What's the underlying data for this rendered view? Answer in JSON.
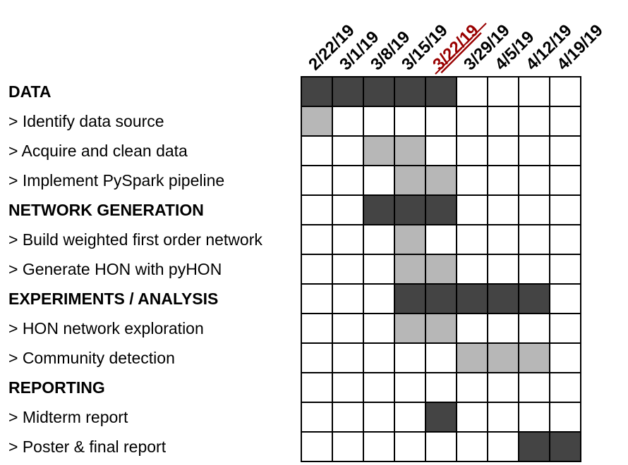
{
  "chart_data": {
    "type": "table",
    "title": "",
    "columns": [
      "2/22/19",
      "3/1/19",
      "3/8/19",
      "3/15/19",
      "3/22/19",
      "3/29/19",
      "4/5/19",
      "4/12/19",
      "4/19/19"
    ],
    "highlighted_column": "3/22/19",
    "rows": [
      {
        "label": "DATA",
        "kind": "section",
        "cells": [
          1,
          1,
          1,
          1,
          1,
          0,
          0,
          0,
          0
        ]
      },
      {
        "label": "> Identify data source",
        "kind": "task",
        "cells": [
          1,
          0,
          0,
          0,
          0,
          0,
          0,
          0,
          0
        ]
      },
      {
        "label": "> Acquire and clean data",
        "kind": "task",
        "cells": [
          0,
          0,
          1,
          1,
          0,
          0,
          0,
          0,
          0
        ]
      },
      {
        "label": "> Implement PySpark pipeline",
        "kind": "task",
        "cells": [
          0,
          0,
          0,
          1,
          1,
          0,
          0,
          0,
          0
        ]
      },
      {
        "label": "NETWORK GENERATION",
        "kind": "section",
        "cells": [
          0,
          0,
          1,
          1,
          1,
          0,
          0,
          0,
          0
        ]
      },
      {
        "label": "> Build weighted first order network",
        "kind": "task",
        "cells": [
          0,
          0,
          0,
          1,
          0,
          0,
          0,
          0,
          0
        ]
      },
      {
        "label": "> Generate HON with pyHON",
        "kind": "task",
        "cells": [
          0,
          0,
          0,
          1,
          1,
          0,
          0,
          0,
          0
        ]
      },
      {
        "label": "EXPERIMENTS / ANALYSIS",
        "kind": "section",
        "cells": [
          0,
          0,
          0,
          1,
          1,
          1,
          1,
          1,
          0
        ]
      },
      {
        "label": "> HON network exploration",
        "kind": "task",
        "cells": [
          0,
          0,
          0,
          1,
          1,
          0,
          0,
          0,
          0
        ]
      },
      {
        "label": "> Community detection",
        "kind": "task",
        "cells": [
          0,
          0,
          0,
          0,
          0,
          1,
          1,
          1,
          0
        ]
      },
      {
        "label": "REPORTING",
        "kind": "section",
        "cells": [
          0,
          0,
          0,
          0,
          0,
          0,
          0,
          0,
          0
        ]
      },
      {
        "label": "> Midterm report",
        "kind": "milestone",
        "cells": [
          0,
          0,
          0,
          0,
          1,
          0,
          0,
          0,
          0
        ]
      },
      {
        "label": "> Poster & final report",
        "kind": "milestone",
        "cells": [
          0,
          0,
          0,
          0,
          0,
          0,
          0,
          1,
          1
        ]
      }
    ],
    "colors": {
      "section_fill": "#444444",
      "task_fill": "#b7b7b7",
      "milestone_fill": "#444444",
      "empty_fill": "#ffffff",
      "grid": "#000000",
      "highlight_text": "#990000",
      "text": "#000000"
    }
  }
}
